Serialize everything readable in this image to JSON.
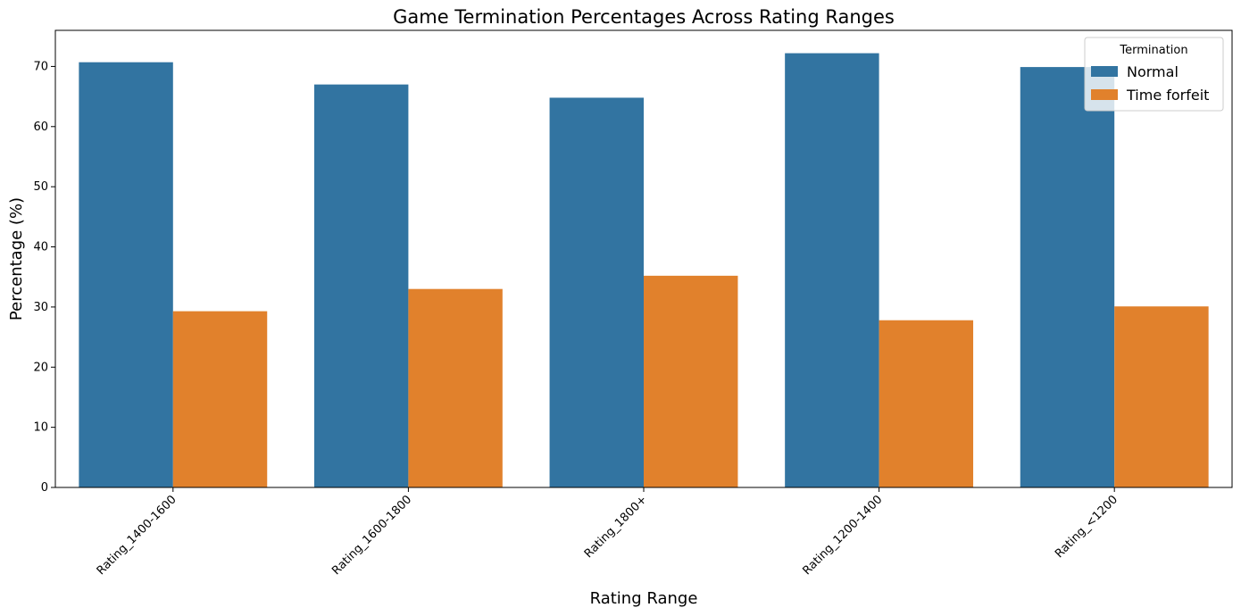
{
  "chart_data": {
    "type": "bar",
    "title": "Game Termination Percentages Across Rating Ranges",
    "xlabel": "Rating Range",
    "ylabel": "Percentage (%)",
    "categories": [
      "Rating_1400-1600",
      "Rating_1600-1800",
      "Rating_1800+",
      "Rating_1200-1400",
      "Rating_<1200"
    ],
    "series": [
      {
        "name": "Normal",
        "color": "#3274a1",
        "values": [
          70.7,
          67.0,
          64.8,
          72.2,
          69.9
        ]
      },
      {
        "name": "Time forfeit",
        "color": "#e1812c",
        "values": [
          29.3,
          33.0,
          35.2,
          27.8,
          30.1
        ]
      }
    ],
    "ylim": [
      0,
      76
    ],
    "yticks": [
      0,
      10,
      20,
      30,
      40,
      50,
      60,
      70
    ],
    "legend": {
      "title": "Termination",
      "placement": "top-right"
    },
    "grid": false
  }
}
